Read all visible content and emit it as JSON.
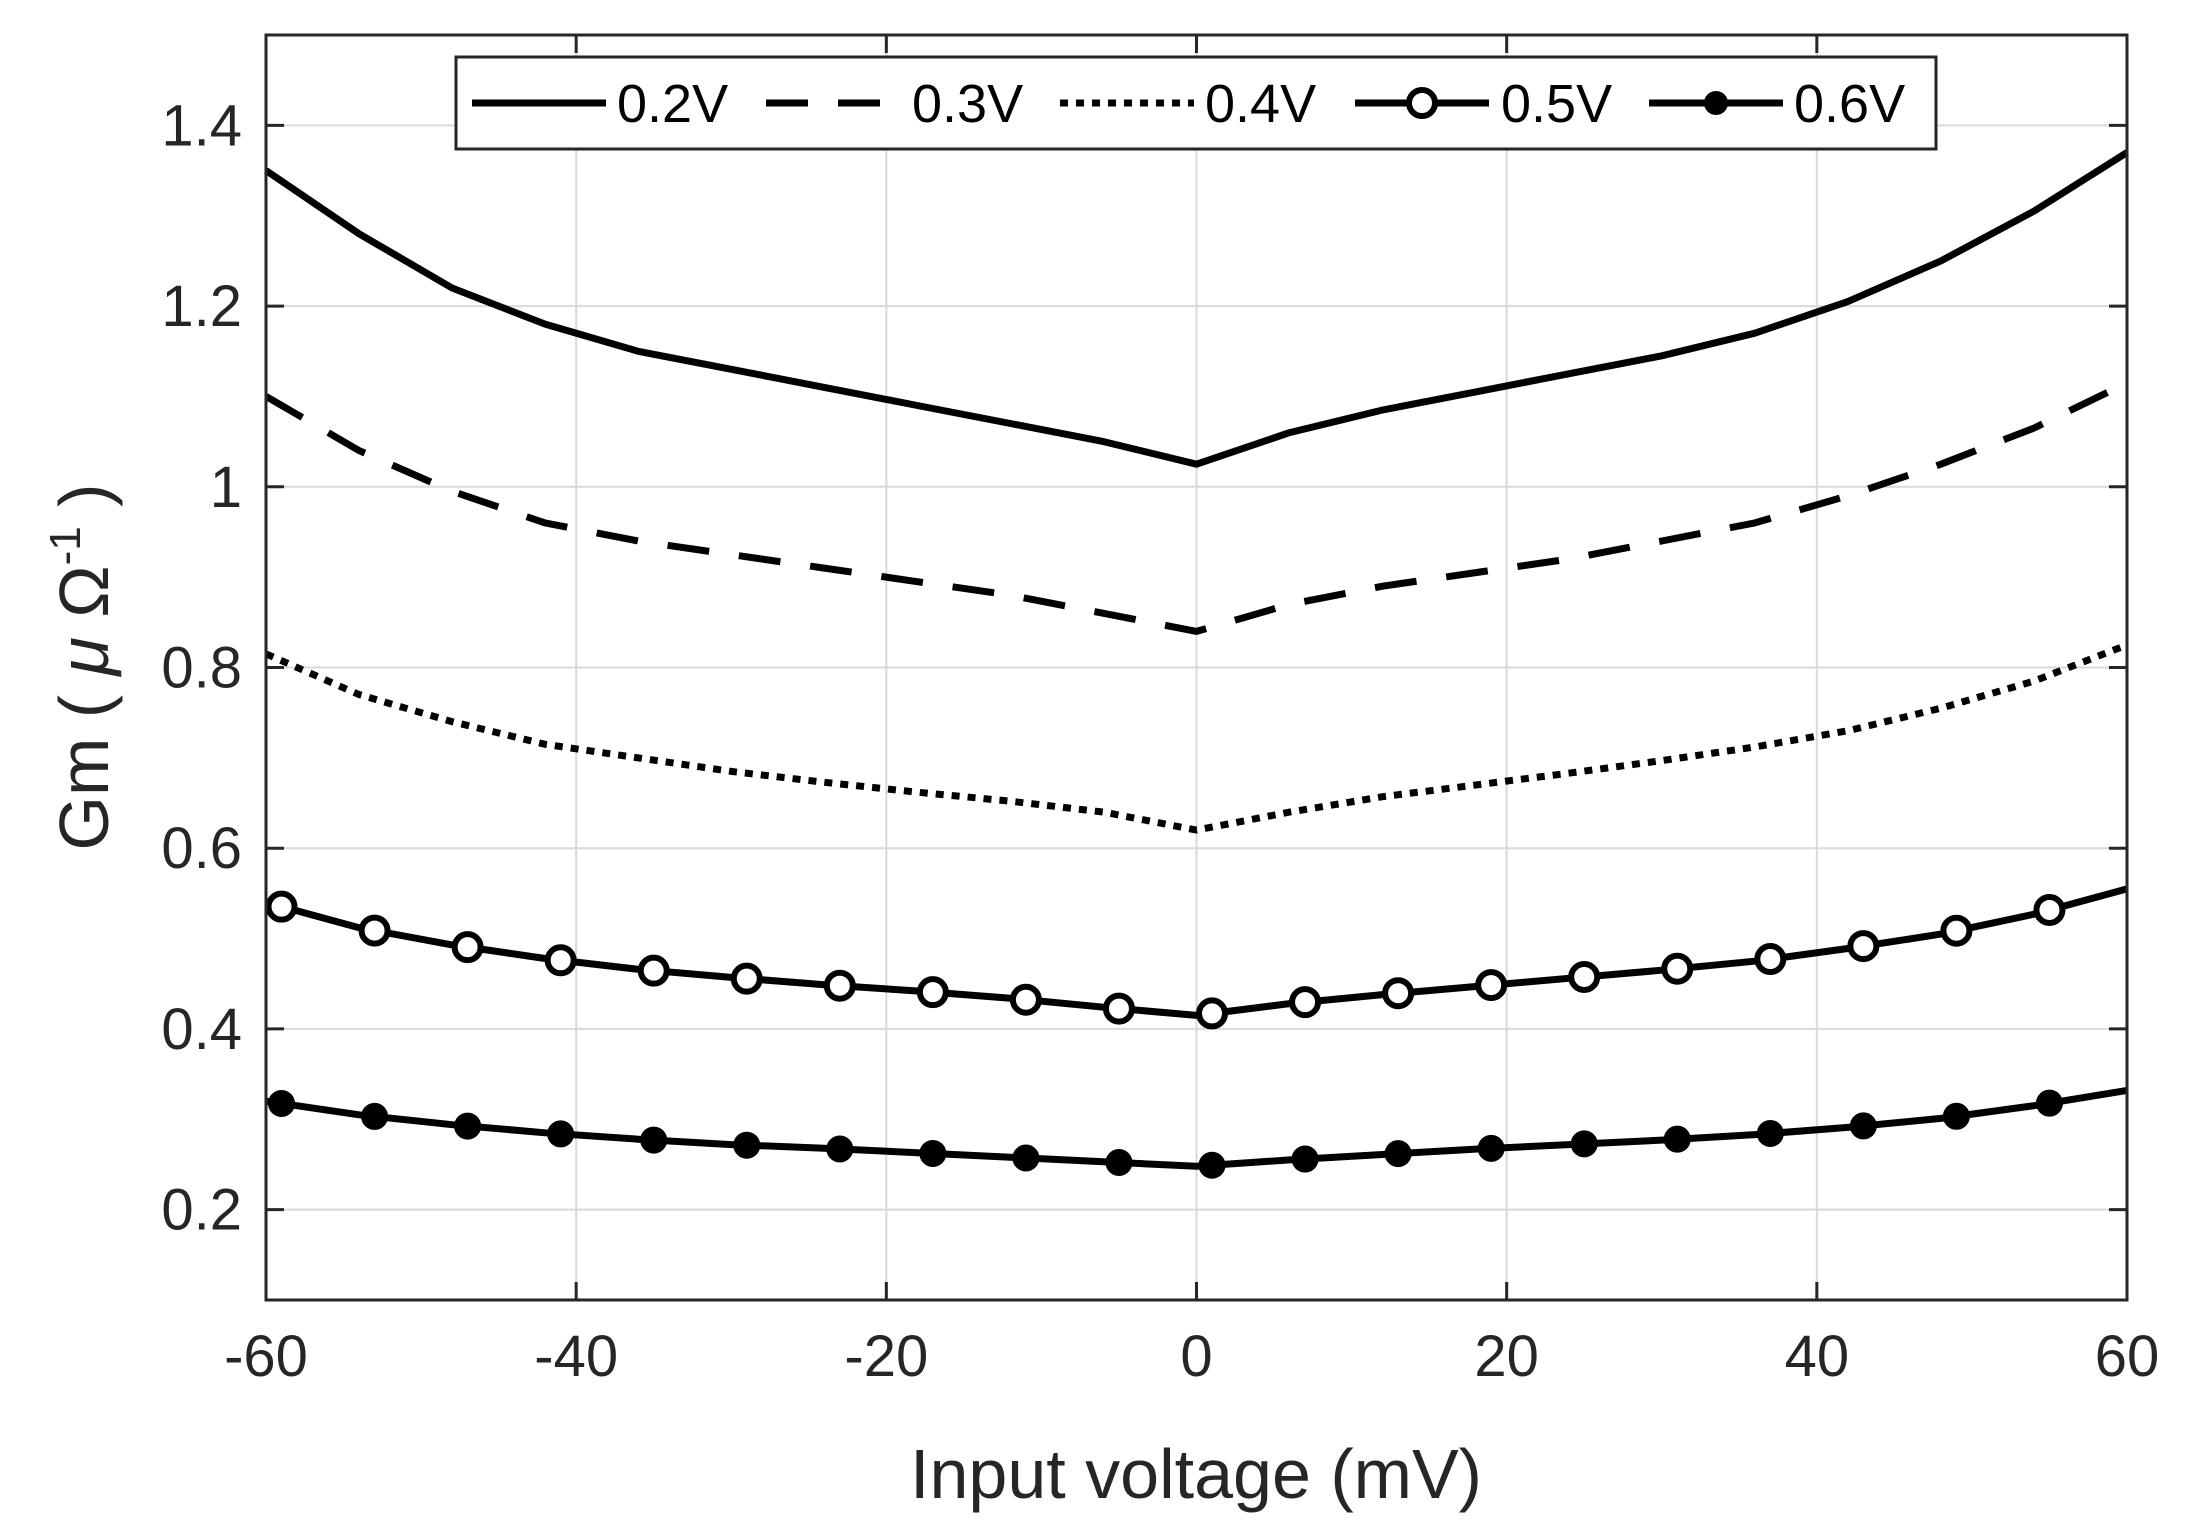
{
  "chart_data": {
    "type": "line",
    "title": "",
    "xlabel": "Input voltage (mV)",
    "ylabel_prefix": "Gm ( ",
    "ylabel_mu": "μ",
    "ylabel_omega": "Ω",
    "ylabel_sup": "-1",
    "ylabel_suffix": " )",
    "xlim": [
      -60,
      60
    ],
    "ylim": [
      0.1,
      1.5
    ],
    "xticks": [
      -60,
      -40,
      -20,
      0,
      20,
      40,
      60
    ],
    "yticks": [
      0.2,
      0.4,
      0.6,
      0.8,
      1.0,
      1.2,
      1.4
    ],
    "xtick_labels": [
      "-60",
      "-40",
      "-20",
      "0",
      "20",
      "40",
      "60"
    ],
    "ytick_labels": [
      "0.2",
      "0.4",
      "0.6",
      "0.8",
      "1",
      "1.2",
      "1.4"
    ],
    "grid": true,
    "legend_position": "top",
    "x": [
      -60,
      -54,
      -48,
      -42,
      -36,
      -30,
      -24,
      -18,
      -12,
      -6,
      0,
      6,
      12,
      18,
      24,
      30,
      36,
      42,
      48,
      54,
      60
    ],
    "series": [
      {
        "name": "0.2V",
        "style": "solid",
        "marker": "none",
        "values": [
          1.35,
          1.28,
          1.22,
          1.18,
          1.15,
          1.13,
          1.11,
          1.09,
          1.07,
          1.05,
          1.025,
          1.06,
          1.085,
          1.105,
          1.125,
          1.145,
          1.17,
          1.205,
          1.25,
          1.305,
          1.37
        ]
      },
      {
        "name": "0.3V",
        "style": "dashed",
        "marker": "none",
        "values": [
          1.1,
          1.04,
          0.995,
          0.96,
          0.94,
          0.925,
          0.91,
          0.895,
          0.88,
          0.86,
          0.84,
          0.87,
          0.89,
          0.905,
          0.92,
          0.94,
          0.96,
          0.99,
          1.025,
          1.065,
          1.115
        ]
      },
      {
        "name": "0.4V",
        "style": "dotted",
        "marker": "none",
        "values": [
          0.815,
          0.77,
          0.74,
          0.715,
          0.7,
          0.685,
          0.673,
          0.662,
          0.652,
          0.64,
          0.62,
          0.64,
          0.657,
          0.67,
          0.683,
          0.697,
          0.712,
          0.73,
          0.755,
          0.785,
          0.825
        ]
      },
      {
        "name": "0.5V",
        "style": "solid",
        "marker": "open-circle",
        "values": [
          0.54,
          0.512,
          0.493,
          0.478,
          0.466,
          0.457,
          0.449,
          0.442,
          0.434,
          0.424,
          0.415,
          0.428,
          0.438,
          0.447,
          0.456,
          0.465,
          0.475,
          0.489,
          0.505,
          0.527,
          0.555
        ]
      },
      {
        "name": "0.6V",
        "style": "solid",
        "marker": "filled-circle",
        "values": [
          0.32,
          0.305,
          0.294,
          0.285,
          0.278,
          0.272,
          0.268,
          0.263,
          0.258,
          0.253,
          0.248,
          0.255,
          0.261,
          0.267,
          0.272,
          0.277,
          0.283,
          0.291,
          0.301,
          0.315,
          0.332
        ]
      }
    ],
    "marker_x": [
      -59,
      -53,
      -47,
      -41,
      -35,
      -29,
      -23,
      -17,
      -11,
      -5,
      1,
      7,
      13,
      19,
      25,
      31,
      37,
      43,
      49,
      55
    ],
    "colors": {
      "line": "#000000",
      "grid": "#d9d9d9",
      "axis": "#262626",
      "background": "#ffffff"
    }
  }
}
